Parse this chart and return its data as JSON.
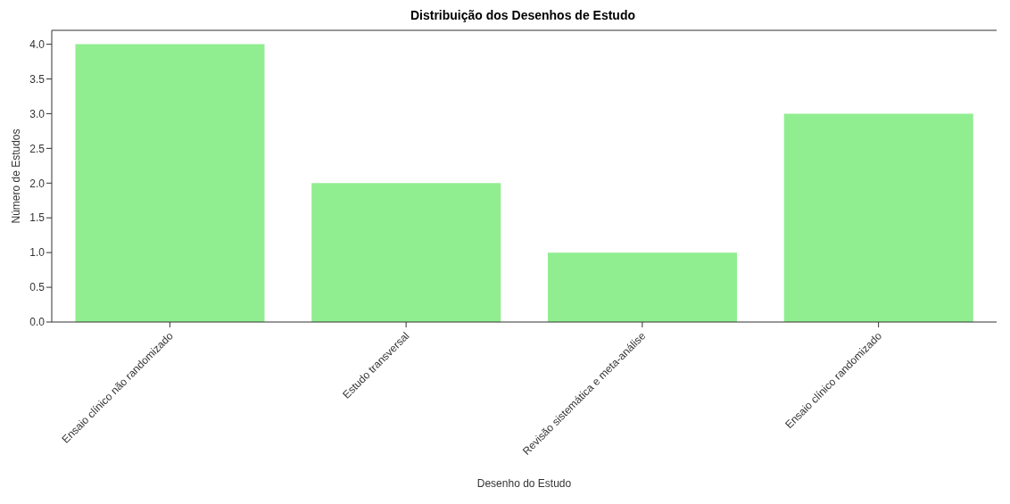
{
  "chart_data": {
    "type": "bar",
    "title": "Distribuição dos Desenhos de Estudo",
    "xlabel": "Desenho do Estudo",
    "ylabel": "Número de Estudos",
    "categories": [
      "Ensaio clínico não randomizado",
      "Estudo transversal",
      "Revisão sistemática e meta-análise",
      "Ensaio clínico randomizado"
    ],
    "values": [
      4,
      2,
      1,
      3
    ],
    "color": "#90ee90",
    "ylim": [
      0,
      4.2
    ],
    "yticks": [
      {
        "value": 0,
        "label": "0.0"
      },
      {
        "value": 0.5,
        "label": "0.5"
      },
      {
        "value": 1,
        "label": "1.0"
      },
      {
        "value": 1.5,
        "label": "1.5"
      },
      {
        "value": 2,
        "label": "2.0"
      },
      {
        "value": 2.5,
        "label": "2.5"
      },
      {
        "value": 3,
        "label": "3.0"
      },
      {
        "value": 3.5,
        "label": "3.5"
      },
      {
        "value": 4,
        "label": "4.0"
      }
    ],
    "grid": false,
    "legend": false
  }
}
